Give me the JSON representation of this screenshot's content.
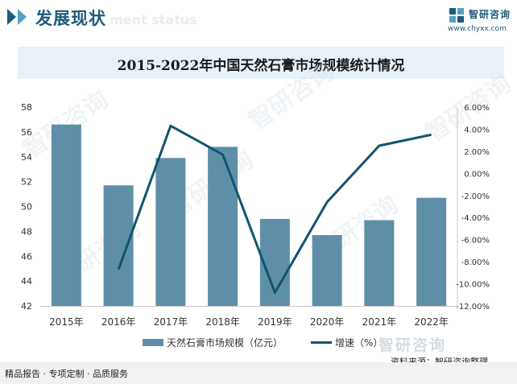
{
  "header": {
    "section_title": "发展现状",
    "section_subtitle": "ment status",
    "brand_name": "智研咨询",
    "brand_url": "www.chyxx.com"
  },
  "watermark": {
    "text": "智研咨询"
  },
  "chart_data": {
    "type": "bar+line",
    "title": "2015-2022年中国天然石膏市场规模统计情况",
    "categories": [
      "2015年",
      "2016年",
      "2017年",
      "2018年",
      "2019年",
      "2020年",
      "2021年",
      "2022年"
    ],
    "series": [
      {
        "name": "天然石膏市场规模（亿元）",
        "type": "bar",
        "axis": "left",
        "color": "#5f8fa8",
        "values": [
          56.6,
          51.7,
          53.9,
          54.8,
          49.0,
          47.7,
          48.9,
          50.7
        ]
      },
      {
        "name": "增速（%）",
        "type": "line",
        "axis": "right",
        "color": "#12546e",
        "values": [
          null,
          -8.7,
          4.3,
          1.7,
          -10.8,
          -2.6,
          2.5,
          3.5
        ]
      }
    ],
    "left_axis": {
      "min": 42,
      "max": 58,
      "ticks": [
        "42",
        "44",
        "46",
        "48",
        "50",
        "52",
        "54",
        "56",
        "58"
      ]
    },
    "right_axis": {
      "min": -12,
      "max": 6,
      "ticks": [
        "-12.00%",
        "-10.00%",
        "-8.00%",
        "-6.00%",
        "-4.00%",
        "-2.00%",
        "0.00%",
        "2.00%",
        "4.00%",
        "6.00%"
      ]
    },
    "legend_position": "bottom",
    "grid": false
  },
  "footer": {
    "source": "资料来源：智研咨询整理",
    "tagline": "精品报告 · 专项定制 · 品质服务",
    "logo": "智研咨询"
  }
}
